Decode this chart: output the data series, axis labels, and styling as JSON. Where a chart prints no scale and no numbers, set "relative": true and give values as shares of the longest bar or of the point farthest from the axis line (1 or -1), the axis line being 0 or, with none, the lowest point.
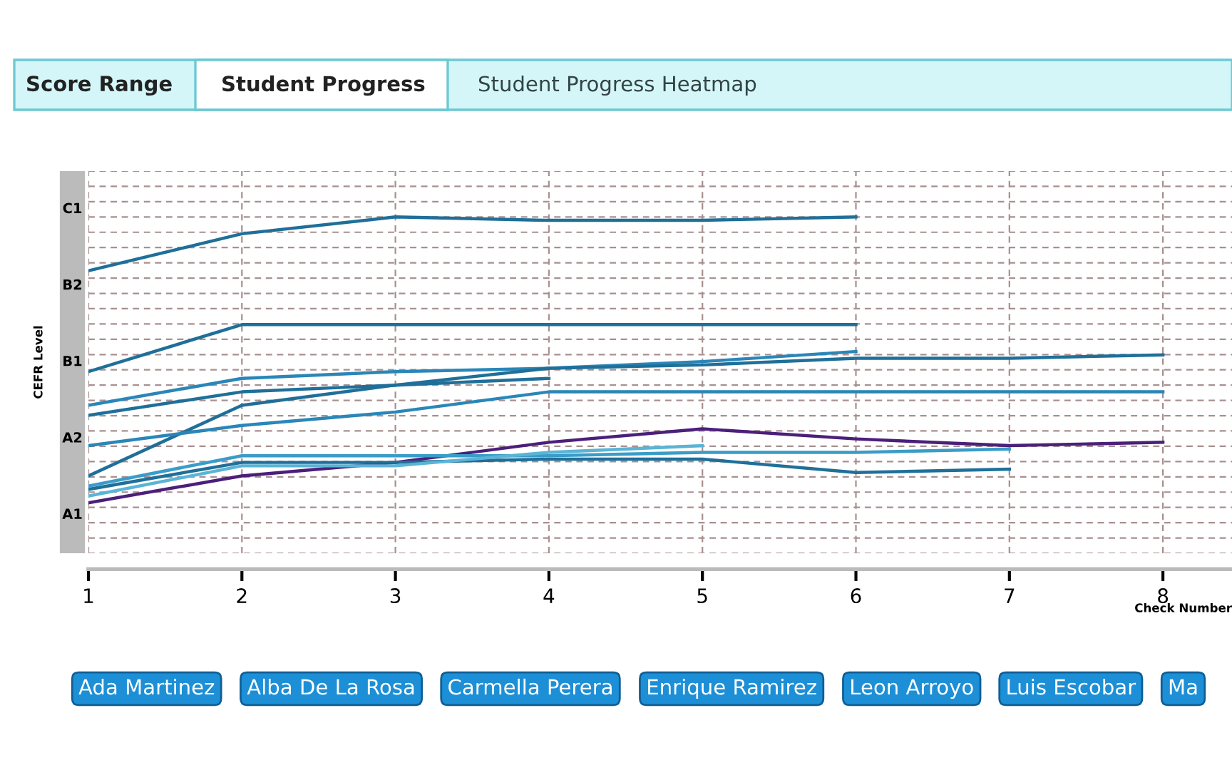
{
  "chart_data": {
    "type": "line",
    "title": "Student Progress",
    "xlabel": "Check Number",
    "ylabel": "CEFR Level",
    "relative": true,
    "annotations": [
      "Score Range",
      "Student Progress Heatmap",
      "Ada Martinez",
      "Alba De La Rosa",
      "Carmella Perera",
      "Enrique Ramirez",
      "Leon Arroyo",
      "Luis Escobar",
      "Ma",
      "A1",
      "A2",
      "B1",
      "B2",
      "C1"
    ],
    "x": [
      1,
      2,
      3,
      4,
      5,
      6,
      7,
      8
    ],
    "series": [
      {
        "color": "#1f6f99",
        "values": [
          0.84,
          0.95,
          1,
          0.99,
          0.99,
          1,
          null,
          null
        ]
      },
      {
        "color": "#1f6f99",
        "values": [
          0.54,
          0.68,
          0.68,
          0.68,
          0.68,
          0.68,
          null,
          null
        ]
      },
      {
        "color": "#2a86b8",
        "values": [
          0.44,
          0.52,
          0.54,
          0.55,
          0.57,
          0.6,
          null,
          null
        ]
      },
      {
        "color": "#1f6f99",
        "values": [
          0.41,
          0.48,
          0.5,
          0.52,
          null,
          null,
          null,
          null
        ]
      },
      {
        "color": "#1f6f99",
        "values": [
          0.23,
          0.44,
          0.5,
          0.55,
          0.56,
          0.58,
          0.58,
          0.59
        ]
      },
      {
        "color": "#2a86b8",
        "values": [
          0.32,
          0.38,
          0.42,
          0.48,
          0.48,
          0.48,
          0.48,
          0.48
        ]
      },
      {
        "color": "#4b1f7a",
        "values": [
          0.15,
          0.23,
          0.27,
          0.33,
          0.37,
          0.34,
          0.32,
          0.33
        ]
      },
      {
        "color": "#3a9cc8",
        "values": [
          0.2,
          0.29,
          0.29,
          0.29,
          0.3,
          0.3,
          0.31,
          null
        ]
      },
      {
        "color": "#1f6f99",
        "values": [
          0.19,
          0.27,
          0.27,
          0.28,
          0.28,
          0.24,
          0.25,
          null
        ]
      },
      {
        "color": "#5ab4d6",
        "values": [
          0.17,
          0.26,
          0.26,
          0.3,
          0.32,
          null,
          null,
          null
        ]
      }
    ],
    "xlim": [
      1,
      8.45
    ],
    "xticks": [
      1,
      2,
      3,
      4,
      5,
      6,
      7,
      8
    ],
    "grid": true,
    "marker": "none",
    "line_style": "solid"
  }
}
